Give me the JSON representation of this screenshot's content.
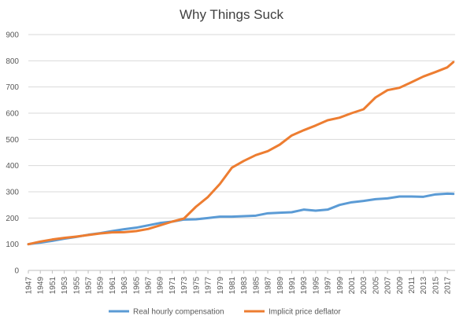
{
  "chart_data": {
    "type": "line",
    "title": "Why Things Suck",
    "xlabel": "",
    "ylabel": "",
    "ylim": [
      0,
      900
    ],
    "yticks": [
      0,
      100,
      200,
      300,
      400,
      500,
      600,
      700,
      800,
      900
    ],
    "xticks": [
      1947,
      1949,
      1951,
      1953,
      1955,
      1957,
      1959,
      1961,
      1963,
      1965,
      1967,
      1969,
      1971,
      1973,
      1975,
      1977,
      1979,
      1981,
      1983,
      1985,
      1987,
      1989,
      1991,
      1993,
      1995,
      1997,
      1999,
      2001,
      2003,
      2005,
      2007,
      2009,
      2011,
      2013,
      2015,
      2017
    ],
    "xlim": [
      1947,
      2018.3
    ],
    "grid": true,
    "legend": "bottom",
    "series": [
      {
        "name": "Real hourly compensation",
        "color": "#5b9bd5",
        "x": [
          1947,
          1949,
          1951,
          1953,
          1955,
          1957,
          1959,
          1961,
          1963,
          1965,
          1967,
          1969,
          1971,
          1973,
          1975,
          1977,
          1979,
          1981,
          1983,
          1985,
          1987,
          1989,
          1991,
          1993,
          1995,
          1997,
          1999,
          2001,
          2003,
          2005,
          2007,
          2009,
          2011,
          2013,
          2015,
          2017,
          2018
        ],
        "values": [
          100,
          106,
          113,
          121,
          128,
          136,
          142,
          150,
          157,
          163,
          172,
          181,
          186,
          194,
          195,
          200,
          205,
          205,
          207,
          209,
          218,
          220,
          222,
          232,
          228,
          232,
          250,
          260,
          265,
          272,
          275,
          282,
          282,
          281,
          290,
          293,
          292
        ]
      },
      {
        "name": "Implicit price deflator",
        "color": "#ed7d31",
        "x": [
          1947,
          1949,
          1951,
          1953,
          1955,
          1957,
          1959,
          1961,
          1963,
          1965,
          1967,
          1969,
          1971,
          1973,
          1975,
          1977,
          1979,
          1981,
          1983,
          1985,
          1987,
          1989,
          1991,
          1993,
          1995,
          1997,
          1999,
          2001,
          2003,
          2005,
          2007,
          2009,
          2011,
          2013,
          2015,
          2017,
          2018
        ],
        "values": [
          100,
          110,
          118,
          124,
          129,
          135,
          141,
          145,
          146,
          150,
          158,
          172,
          186,
          198,
          243,
          280,
          330,
          392,
          418,
          440,
          455,
          480,
          515,
          535,
          553,
          573,
          583,
          600,
          615,
          660,
          688,
          697,
          718,
          740,
          757,
          775,
          795
        ]
      }
    ]
  }
}
